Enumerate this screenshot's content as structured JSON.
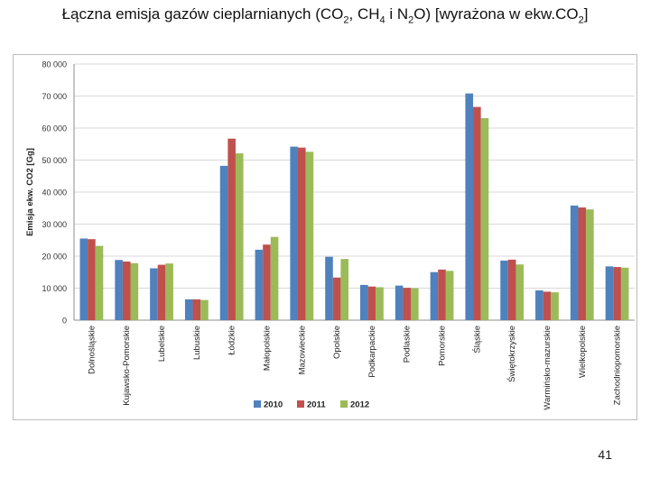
{
  "slide": {
    "title_parts": [
      {
        "t": "Łączna emisja gazów cieplarnianych (CO"
      },
      {
        "t": "2",
        "sub": true
      },
      {
        "t": ", CH"
      },
      {
        "t": "4",
        "sub": true
      },
      {
        "t": " i N"
      },
      {
        "t": "2",
        "sub": true
      },
      {
        "t": "O) [wyrażona w ekw.CO"
      },
      {
        "t": "2",
        "sub": true
      },
      {
        "t": "]"
      }
    ],
    "page_number": "41"
  },
  "chart_data": {
    "type": "bar",
    "ylabel": "Emisja ekw. CO2 [Gg]",
    "ylim": [
      0,
      80000
    ],
    "ytick_labels": [
      "0",
      "10 000",
      "20 000",
      "30 000",
      "40 000",
      "50 000",
      "60 000",
      "70 000",
      "80 000"
    ],
    "grid": true,
    "legend_position": "bottom",
    "categories": [
      "Dolnośląskie",
      "Kujawsko-Pomorskie",
      "Lubelskie",
      "Lubuskie",
      "Łódzkie",
      "Małopolskie",
      "Mazowieckie",
      "Opolskie",
      "Podkarpackie",
      "Podlaskie",
      "Pomorskie",
      "Śląskie",
      "Świętokrzyskie",
      "Warmińsko-mazurskie",
      "Wielkopolskie",
      "Zachodniopomorskie"
    ],
    "series": [
      {
        "name": "2010",
        "color": "#4f81bd",
        "values": [
          25500,
          18800,
          16200,
          6500,
          48200,
          22000,
          54200,
          19800,
          11000,
          10800,
          15000,
          70800,
          18600,
          9300,
          35800,
          16800
        ]
      },
      {
        "name": "2011",
        "color": "#c0504d",
        "values": [
          25300,
          18300,
          17300,
          6500,
          56700,
          23600,
          53900,
          13300,
          10500,
          10100,
          15800,
          66600,
          18900,
          8900,
          35200,
          16600
        ]
      },
      {
        "name": "2012",
        "color": "#9bbb59",
        "values": [
          23200,
          17800,
          17700,
          6300,
          52100,
          26000,
          52600,
          19100,
          10300,
          10000,
          15400,
          63100,
          17400,
          8700,
          34600,
          16400
        ]
      }
    ]
  }
}
